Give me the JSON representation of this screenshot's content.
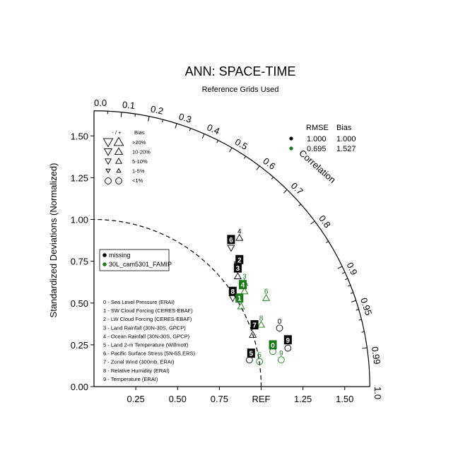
{
  "chart_data": {
    "type": "taylor-diagram",
    "title": "ANN: SPACE-TIME",
    "subtitle": "Reference Grids Used",
    "ylabel": "Standardized Deviations (Normalized)",
    "correlation_label": "Correlation",
    "ref_label": "REF",
    "std_range": [
      0,
      1.65
    ],
    "std_ticks": [
      "0.00",
      "0.25",
      "0.50",
      "0.75",
      "1.00",
      "1.25",
      "1.50"
    ],
    "x_ticks": [
      "0.25",
      "0.50",
      "0.75",
      "1.25",
      "1.50"
    ],
    "corr_ticks": [
      "0.0",
      "0.1",
      "0.2",
      "0.3",
      "0.4",
      "0.5",
      "0.6",
      "0.7",
      "0.8",
      "0.9",
      "0.95",
      "0.99",
      "1.0"
    ],
    "stats_header": {
      "rmse": "RMSE",
      "bias": "Bias"
    },
    "stats": [
      {
        "rmse": "1.000",
        "bias": "1.000",
        "color": "#000000"
      },
      {
        "rmse": "0.695",
        "bias": "1.527",
        "color": "#1a7a1a"
      }
    ],
    "bias_legend": {
      "header_sign": "- / +",
      "header_bias": "Bias",
      "rows": [
        ">20%",
        "10-20%",
        "5-10%",
        "1-5%",
        "<1%"
      ]
    },
    "case_legend": [
      {
        "name": "missing",
        "color": "#000000"
      },
      {
        "name": "30L_cam5301_FAMIP",
        "color": "#1a7a1a"
      }
    ],
    "variables": [
      "0 - Sea Level Pressure (ERAI)",
      "1 - SW Cloud Forcing (CERES-EBAF)",
      "2 - LW Cloud Forcing (CERES-EBAF)",
      "3 - Land Rainfall (30N-30S, GPCP)",
      "4 - Ocean Rainfall (30N-30S, GPCP)",
      "5 - Land 2-m Temperature (Willmott)",
      "6 - Pacific Surface Stress (5N-5S,ERS)",
      "7 - Zonal Wind (300mb, ERAI)",
      "8 - Relative Humidity (ERAI)",
      "9 - Temperature (ERAI)"
    ],
    "series": [
      {
        "name": "missing",
        "color": "#000000",
        "points": [
          {
            "id": "0",
            "x": 1.11,
            "y": 0.35,
            "marker": "circle"
          },
          {
            "id": "2",
            "x": 0.86,
            "y": 0.73,
            "marker": "tri-down"
          },
          {
            "id": "3",
            "x": 0.86,
            "y": 0.66,
            "marker": "tri-up"
          },
          {
            "id": "4",
            "x": 0.87,
            "y": 0.89,
            "marker": "tri-up"
          },
          {
            "id": "5",
            "x": 0.93,
            "y": 0.16,
            "marker": "circle"
          },
          {
            "id": "6",
            "x": 0.82,
            "y": 0.83,
            "marker": "tri-down"
          },
          {
            "id": "7",
            "x": 0.95,
            "y": 0.31,
            "marker": "tri-up"
          },
          {
            "id": "8",
            "x": 0.83,
            "y": 0.53,
            "marker": "tri-down"
          },
          {
            "id": "9",
            "x": 1.16,
            "y": 0.23,
            "marker": "circle"
          }
        ]
      },
      {
        "name": "30L_cam5301_FAMIP",
        "color": "#1a7a1a",
        "points": [
          {
            "id": "0",
            "x": 1.07,
            "y": 0.21,
            "marker": "circle"
          },
          {
            "id": "1",
            "x": 0.88,
            "y": 0.48,
            "marker": "tri-up"
          },
          {
            "id": "3",
            "x": 0.9,
            "y": 0.62,
            "marker": "tri-up"
          },
          {
            "id": "4",
            "x": 0.9,
            "y": 0.57,
            "marker": "tri-up"
          },
          {
            "id": "5",
            "x": 0.99,
            "y": 0.15,
            "marker": "circle"
          },
          {
            "id": "6",
            "x": 1.03,
            "y": 0.53,
            "marker": "tri-up"
          },
          {
            "id": "8",
            "x": 1.0,
            "y": 0.37,
            "marker": "tri-up"
          },
          {
            "id": "9",
            "x": 1.12,
            "y": 0.16,
            "marker": "circle"
          }
        ]
      }
    ],
    "label_boxes": [
      {
        "id": "6",
        "x": 0.82,
        "y": 0.88,
        "series": 0
      },
      {
        "id": "2",
        "x": 0.87,
        "y": 0.76,
        "series": 0
      },
      {
        "id": "3",
        "x": 0.86,
        "y": 0.71,
        "series": 0
      },
      {
        "id": "8",
        "x": 0.83,
        "y": 0.57,
        "series": 0
      },
      {
        "id": "7",
        "x": 0.96,
        "y": 0.37,
        "series": 0
      },
      {
        "id": "5",
        "x": 0.94,
        "y": 0.2,
        "series": 0
      },
      {
        "id": "9",
        "x": 1.16,
        "y": 0.28,
        "series": 0
      },
      {
        "id": "4",
        "x": 0.89,
        "y": 0.61,
        "series": 1
      },
      {
        "id": "1",
        "x": 0.87,
        "y": 0.53,
        "series": 1
      },
      {
        "id": "0",
        "x": 1.07,
        "y": 0.25,
        "series": 1
      }
    ],
    "reference_point": {
      "x": 1.0,
      "y": 0.0
    }
  }
}
